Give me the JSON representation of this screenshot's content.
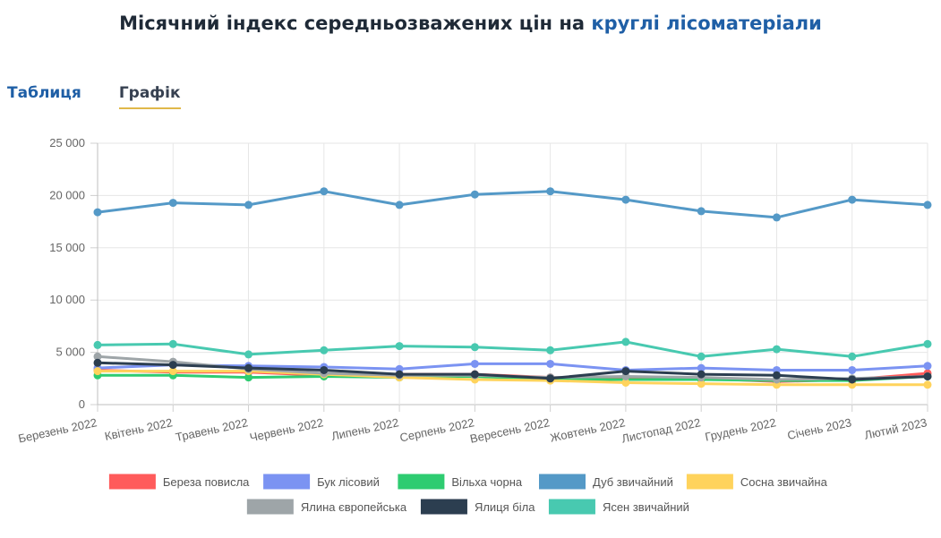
{
  "header": {
    "title_main": "Місячний індекс середньозважених цін на",
    "title_accent": "круглі лісоматеріали"
  },
  "tabs": [
    {
      "label": "Таблиця",
      "active": false
    },
    {
      "label": "Графік",
      "active": true
    }
  ],
  "chart_data": {
    "type": "line",
    "title": "",
    "xlabel": "",
    "ylabel": "",
    "ylim": [
      0,
      25000
    ],
    "yticks": [
      0,
      5000,
      10000,
      15000,
      20000,
      25000
    ],
    "ytick_labels": [
      "0",
      "5 000",
      "10 000",
      "15 000",
      "20 000",
      "25 000"
    ],
    "grid": true,
    "legend_position": "bottom",
    "categories": [
      "Березень 2022",
      "Квітень 2022",
      "Травень 2022",
      "Червень 2022",
      "Липень 2022",
      "Серпень 2022",
      "Вересень 2022",
      "Жовтень 2022",
      "Листопад 2022",
      "Грудень 2022",
      "Січень 2023",
      "Лютий 2023"
    ],
    "series": [
      {
        "name": "Береза повисла",
        "color": "#ff5b5b",
        "values": [
          3300,
          3100,
          3100,
          2800,
          2900,
          2900,
          2600,
          2600,
          2500,
          2200,
          2400,
          3000
        ]
      },
      {
        "name": "Бук лісовий",
        "color": "#7b93f2",
        "values": [
          3500,
          3800,
          3700,
          3600,
          3400,
          3900,
          3900,
          3300,
          3500,
          3300,
          3300,
          3700
        ]
      },
      {
        "name": "Вільха чорна",
        "color": "#2ecc71",
        "values": [
          2800,
          2800,
          2600,
          2700,
          2600,
          2700,
          2400,
          2400,
          2400,
          2300,
          2300,
          2700
        ]
      },
      {
        "name": "Дуб звичайний",
        "color": "#5499c7",
        "values": [
          18400,
          19300,
          19100,
          20400,
          19100,
          20100,
          20400,
          19600,
          18500,
          17900,
          19600,
          19100
        ]
      },
      {
        "name": "Сосна звичайна",
        "color": "#ffd35c",
        "values": [
          3200,
          3200,
          3200,
          2900,
          2600,
          2400,
          2300,
          2100,
          2000,
          1900,
          1900,
          1900
        ]
      },
      {
        "name": "Ялина європейська",
        "color": "#9ea5a8",
        "values": [
          4600,
          4100,
          3400,
          3000,
          2800,
          2800,
          2600,
          2700,
          2600,
          2400,
          2500,
          2700
        ]
      },
      {
        "name": "Ялиця біла",
        "color": "#2c3e50",
        "values": [
          4000,
          3800,
          3500,
          3300,
          2900,
          2900,
          2500,
          3200,
          2900,
          2800,
          2400,
          2700
        ]
      },
      {
        "name": "Ясен звичайний",
        "color": "#48c9b0",
        "values": [
          5700,
          5800,
          4800,
          5200,
          5600,
          5500,
          5200,
          6000,
          4600,
          5300,
          4600,
          5800
        ]
      }
    ]
  }
}
